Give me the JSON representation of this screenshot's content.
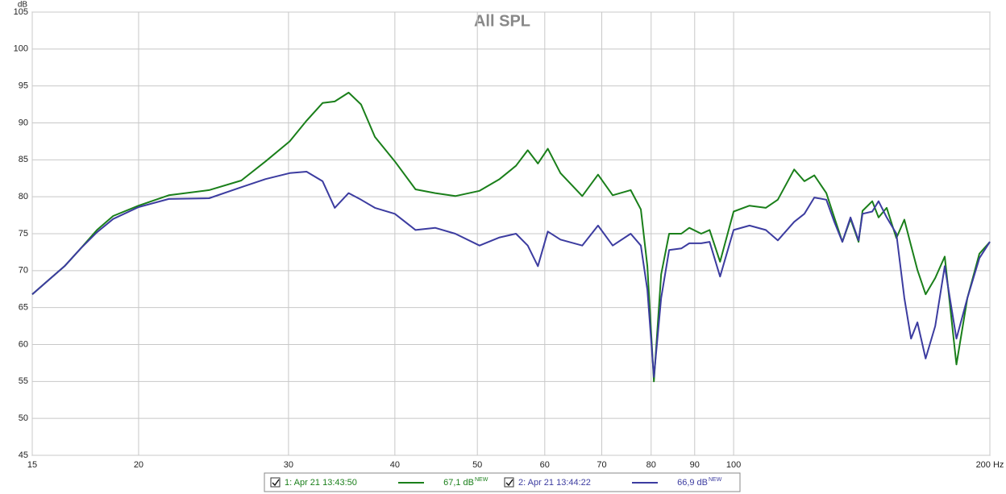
{
  "chart_data": {
    "type": "line",
    "title": "All SPL",
    "y_unit": "dB",
    "x": [
      15,
      15.67,
      16.37,
      17.1,
      17.87,
      18.67,
      20,
      21.7,
      24.2,
      26.4,
      28.2,
      30.1,
      31.5,
      32.9,
      34.0,
      35.3,
      36.5,
      37.9,
      40.0,
      42.3,
      44.6,
      47.1,
      50.3,
      53.1,
      55.5,
      57.3,
      58.9,
      60.5,
      62.6,
      66.4,
      69.3,
      72.1,
      75.7,
      77.8,
      79.2,
      80.6,
      82.2,
      84.0,
      86.8,
      88.7,
      91.6,
      93.7,
      96.4,
      100,
      104.4,
      109.1,
      112.7,
      117.8,
      121.1,
      124.4,
      128.5,
      131.3,
      134.2,
      137.2,
      140.2,
      141.7,
      145.5,
      148.0,
      151.3,
      155.3,
      158.7,
      161.6,
      164.4,
      168.1,
      172.5,
      177.0,
      182.7,
      188.2,
      194.4,
      200
    ],
    "series": [
      {
        "name": "1: Apr 21 13:43:50",
        "readout": "67,1 dB",
        "readout_tag": "NEW",
        "color": "#1a7f1a",
        "values": [
          66.8,
          68.7,
          70.6,
          73.0,
          75.5,
          77.4,
          78.8,
          80.2,
          80.9,
          82.2,
          84.8,
          87.5,
          90.3,
          92.7,
          92.9,
          94.1,
          92.5,
          88.1,
          84.8,
          81.0,
          80.5,
          80.1,
          80.8,
          82.4,
          84.2,
          86.3,
          84.5,
          86.5,
          83.2,
          80.1,
          83.0,
          80.2,
          80.9,
          78.3,
          70.6,
          55.0,
          69.5,
          75.0,
          75.0,
          75.8,
          75.0,
          75.5,
          71.2,
          78.0,
          78.8,
          78.5,
          79.6,
          83.7,
          82.1,
          82.9,
          80.5,
          77.2,
          73.9,
          77.0,
          73.9,
          78.1,
          79.4,
          77.2,
          78.5,
          74.4,
          76.9,
          73.4,
          70.1,
          66.8,
          69.0,
          71.9,
          57.3,
          66.3,
          72.3,
          73.9
        ]
      },
      {
        "name": "2: Apr 21 13:44:22",
        "readout": "66,9 dB",
        "readout_tag": "NEW",
        "color": "#3c3ca0",
        "values": [
          66.8,
          68.7,
          70.6,
          73.0,
          75.2,
          77.0,
          78.6,
          79.7,
          79.8,
          81.3,
          82.4,
          83.2,
          83.4,
          82.1,
          78.5,
          80.5,
          79.6,
          78.5,
          77.7,
          75.5,
          75.8,
          75.0,
          73.4,
          74.5,
          75.0,
          73.4,
          70.6,
          75.3,
          74.2,
          73.4,
          76.1,
          73.4,
          75.0,
          73.4,
          67.4,
          55.6,
          66.3,
          72.8,
          73.0,
          73.7,
          73.7,
          73.9,
          69.2,
          75.5,
          76.1,
          75.5,
          74.1,
          76.6,
          77.7,
          79.9,
          79.6,
          76.6,
          73.9,
          77.2,
          74.1,
          77.7,
          78.0,
          79.4,
          77.2,
          75.0,
          66.3,
          60.8,
          63.0,
          58.1,
          62.5,
          70.6,
          60.8,
          66.3,
          71.7,
          73.9
        ]
      }
    ],
    "xlim": [
      15,
      200
    ],
    "xscale": "log",
    "xticks": [
      15,
      20,
      30,
      40,
      50,
      60,
      70,
      80,
      90,
      100,
      {
        "value": 200,
        "label": "200 Hz"
      }
    ],
    "ylim": [
      45,
      105
    ],
    "yticks": [
      45,
      50,
      55,
      60,
      65,
      70,
      75,
      80,
      85,
      90,
      95,
      100,
      105
    ],
    "grid": true,
    "legend": "bottom"
  }
}
